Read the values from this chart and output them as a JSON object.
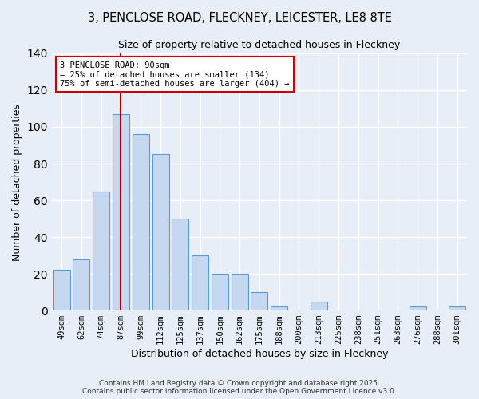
{
  "title1": "3, PENCLOSE ROAD, FLECKNEY, LEICESTER, LE8 8TE",
  "title2": "Size of property relative to detached houses in Fleckney",
  "xlabel": "Distribution of detached houses by size in Fleckney",
  "ylabel": "Number of detached properties",
  "footer1": "Contains HM Land Registry data © Crown copyright and database right 2025.",
  "footer2": "Contains public sector information licensed under the Open Government Licence v3.0.",
  "bar_labels": [
    "49sqm",
    "62sqm",
    "74sqm",
    "87sqm",
    "99sqm",
    "112sqm",
    "125sqm",
    "137sqm",
    "150sqm",
    "162sqm",
    "175sqm",
    "188sqm",
    "200sqm",
    "213sqm",
    "225sqm",
    "238sqm",
    "251sqm",
    "263sqm",
    "276sqm",
    "288sqm",
    "301sqm"
  ],
  "bar_values": [
    22,
    28,
    65,
    107,
    96,
    85,
    50,
    30,
    20,
    20,
    10,
    2,
    0,
    5,
    0,
    0,
    0,
    0,
    2,
    0,
    2
  ],
  "bar_color": "#c5d8f0",
  "bar_edge_color": "#5b9bd5",
  "vline_x_index": 3,
  "vline_color": "#aa0000",
  "annotation_title": "3 PENCLOSE ROAD: 90sqm",
  "annotation_line2": "← 25% of detached houses are smaller (134)",
  "annotation_line3": "75% of semi-detached houses are larger (404) →",
  "annotation_box_facecolor": "#ffffff",
  "annotation_box_edgecolor": "#cc0000",
  "ylim": [
    0,
    140
  ],
  "yticks": [
    0,
    20,
    40,
    60,
    80,
    100,
    120,
    140
  ],
  "background_color": "#e8eef8",
  "grid_color": "#ffffff",
  "figsize": [
    6.0,
    5.0
  ],
  "dpi": 100
}
